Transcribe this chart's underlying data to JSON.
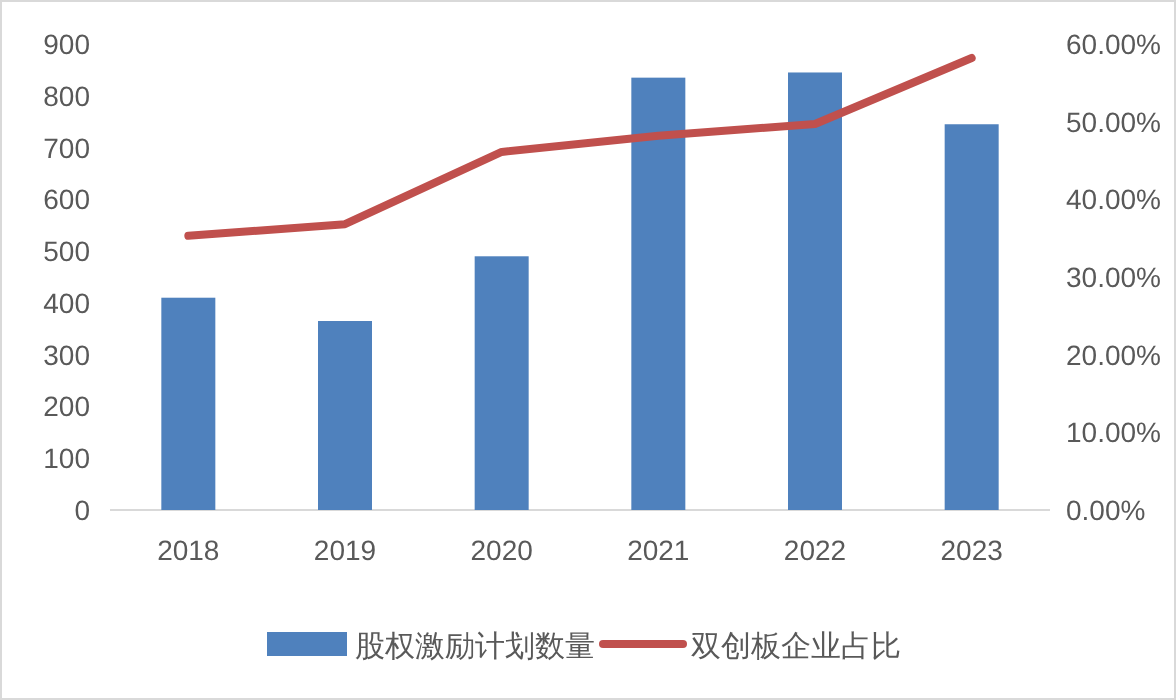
{
  "chart_data": {
    "type": "bar",
    "categories": [
      "2018",
      "2019",
      "2020",
      "2021",
      "2022",
      "2023"
    ],
    "series": [
      {
        "name": "股权激励计划数量",
        "color": "#4f81bd",
        "values": [
          410,
          365,
          490,
          835,
          845,
          745
        ]
      },
      {
        "name": "双创板企业占比",
        "type": "line",
        "axis": "y2",
        "color": "#c0504d",
        "values": [
          35.3,
          36.8,
          46.1,
          48.2,
          49.7,
          58.2
        ]
      }
    ],
    "ylim": [
      0,
      900
    ],
    "yticks": [
      0,
      100,
      200,
      300,
      400,
      500,
      600,
      700,
      800,
      900
    ],
    "y2lim": [
      0,
      60
    ],
    "y2ticks": [
      {
        "value": 0,
        "label": "0.00%"
      },
      {
        "value": 10,
        "label": "10.00%"
      },
      {
        "value": 20,
        "label": "20.00%"
      },
      {
        "value": 30,
        "label": "30.00%"
      },
      {
        "value": 40,
        "label": "40.00%"
      },
      {
        "value": 50,
        "label": "50.00%"
      },
      {
        "value": 60,
        "label": "60.00%"
      }
    ],
    "legend": "bottom"
  }
}
